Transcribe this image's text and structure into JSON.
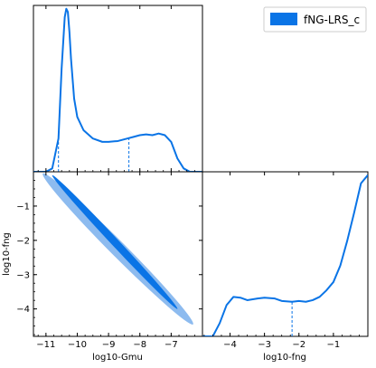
{
  "chart_data": {
    "type": "corner-plot",
    "legend": {
      "label": "fNG-LRS_c",
      "color": "#0a74e6",
      "placement": "top-right"
    },
    "series_color": "#0a74e6",
    "contour_inner_color": "#0a74e6",
    "contour_outer_color": "#8dbbef",
    "x1": {
      "label": "log10-Gmu",
      "range": [
        -11.4,
        -6.0
      ],
      "ticks": [
        -11,
        -10,
        -9,
        -8,
        -7
      ],
      "tick_labels": [
        "−11",
        "−10",
        "−9",
        "−8",
        "−7"
      ]
    },
    "x2": {
      "label": "log10-fng",
      "range": [
        -4.8,
        0.0
      ],
      "ticks": [
        -4,
        -3,
        -2,
        -1
      ],
      "tick_labels": [
        "−4",
        "−3",
        "−2",
        "−1"
      ]
    },
    "y2": {
      "label": "log10-fng",
      "range": [
        -4.8,
        0.0
      ],
      "ticks": [
        -1,
        -2,
        -3,
        -4
      ],
      "tick_labels": [
        "−1",
        "−2",
        "−3",
        "−4"
      ]
    },
    "marginal_gmu": {
      "x": [
        -11.4,
        -11.0,
        -10.8,
        -10.6,
        -10.5,
        -10.4,
        -10.35,
        -10.3,
        -10.25,
        -10.2,
        -10.1,
        -10.0,
        -9.8,
        -9.5,
        -9.2,
        -9.0,
        -8.7,
        -8.4,
        -8.2,
        -8.0,
        -7.8,
        -7.6,
        -7.4,
        -7.2,
        -7.0,
        -6.8,
        -6.6,
        -6.4,
        -6.2,
        -6.0
      ],
      "y": [
        0.0,
        0.0,
        0.02,
        0.2,
        0.62,
        0.93,
        0.98,
        0.96,
        0.84,
        0.68,
        0.44,
        0.33,
        0.25,
        0.2,
        0.18,
        0.18,
        0.185,
        0.2,
        0.21,
        0.22,
        0.225,
        0.22,
        0.23,
        0.22,
        0.18,
        0.08,
        0.02,
        0.0,
        0.0,
        0.0
      ],
      "quantile_markers": [
        -10.6,
        -8.35
      ]
    },
    "marginal_fng": {
      "x": [
        -4.8,
        -4.5,
        -4.3,
        -4.1,
        -3.9,
        -3.7,
        -3.5,
        -3.2,
        -3.0,
        -2.7,
        -2.5,
        -2.2,
        -2.0,
        -1.8,
        -1.6,
        -1.4,
        -1.2,
        -1.0,
        -0.8,
        -0.6,
        -0.4,
        -0.2,
        0.0
      ],
      "y": [
        0.0,
        0.0,
        0.08,
        0.19,
        0.24,
        0.235,
        0.22,
        0.23,
        0.235,
        0.23,
        0.215,
        0.21,
        0.215,
        0.21,
        0.22,
        0.24,
        0.28,
        0.33,
        0.43,
        0.58,
        0.75,
        0.93,
        0.98
      ],
      "quantile_markers": [
        -2.2
      ]
    },
    "joint_contours": {
      "outer_68_95": {
        "center": [
          -8.55,
          -2.55
        ],
        "major_endpoints": [
          [
            -11.1,
            -0.05
          ],
          [
            -6.3,
            -4.45
          ]
        ],
        "minor_halfwidth_data_fng": 0.22
      },
      "inner_68": {
        "center": [
          -8.6,
          -2.45
        ],
        "major_endpoints": [
          [
            -10.8,
            -0.1
          ],
          [
            -6.8,
            -4.0
          ]
        ],
        "minor_halfwidth_data_fng": 0.11
      }
    }
  }
}
